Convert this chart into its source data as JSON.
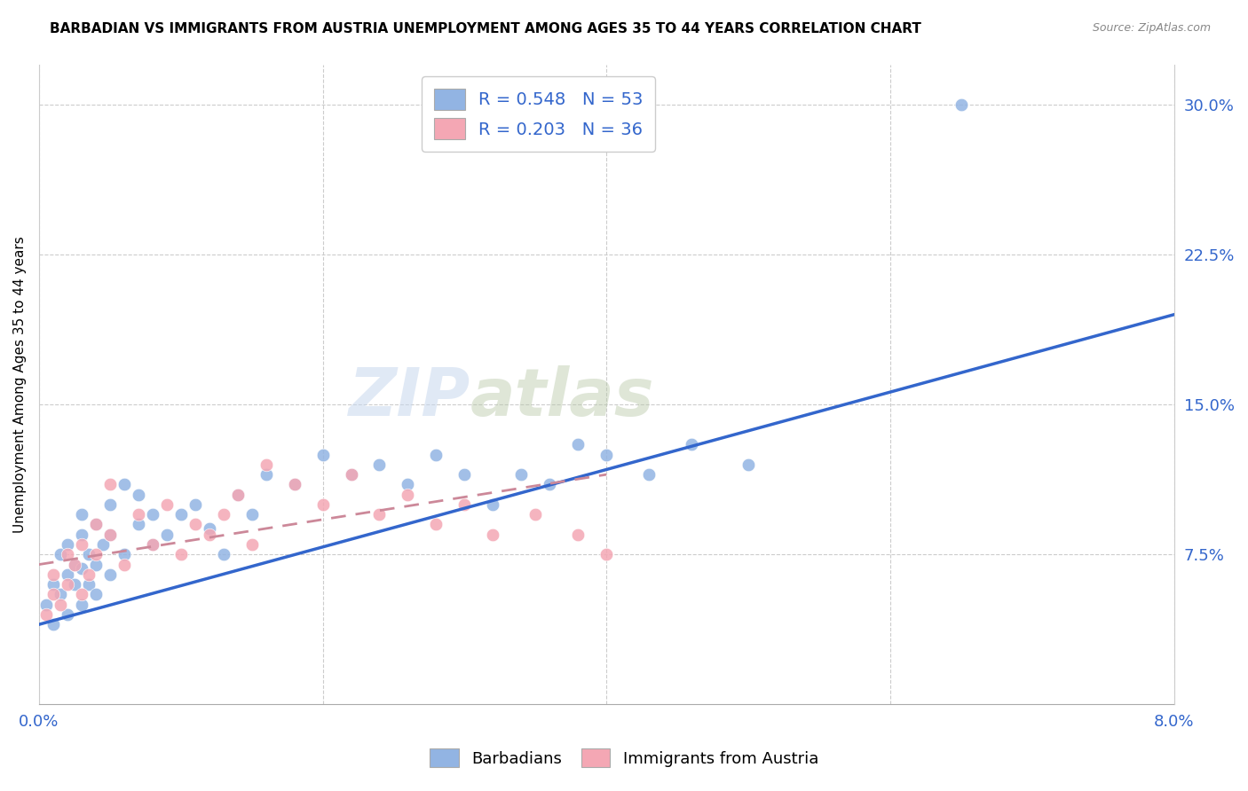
{
  "title": "BARBADIAN VS IMMIGRANTS FROM AUSTRIA UNEMPLOYMENT AMONG AGES 35 TO 44 YEARS CORRELATION CHART",
  "source": "Source: ZipAtlas.com",
  "ylabel": "Unemployment Among Ages 35 to 44 years",
  "xlim": [
    0.0,
    0.08
  ],
  "ylim": [
    0.0,
    0.32
  ],
  "ytick_labels": [
    "7.5%",
    "15.0%",
    "22.5%",
    "30.0%"
  ],
  "ytick_vals": [
    0.075,
    0.15,
    0.225,
    0.3
  ],
  "watermark_left": "ZIP",
  "watermark_right": "atlas",
  "legend1_label": "R = 0.548   N = 53",
  "legend2_label": "R = 0.203   N = 36",
  "blue_color": "#92b4e3",
  "pink_color": "#f4a7b4",
  "blue_line_color": "#3366cc",
  "pink_line_color": "#cc8899",
  "barbadian_x": [
    0.0005,
    0.001,
    0.001,
    0.0015,
    0.0015,
    0.002,
    0.002,
    0.002,
    0.0025,
    0.0025,
    0.003,
    0.003,
    0.003,
    0.003,
    0.0035,
    0.0035,
    0.004,
    0.004,
    0.004,
    0.0045,
    0.005,
    0.005,
    0.005,
    0.006,
    0.006,
    0.007,
    0.007,
    0.008,
    0.008,
    0.009,
    0.01,
    0.011,
    0.012,
    0.013,
    0.014,
    0.015,
    0.016,
    0.018,
    0.02,
    0.022,
    0.024,
    0.026,
    0.028,
    0.03,
    0.032,
    0.034,
    0.036,
    0.038,
    0.04,
    0.043,
    0.046,
    0.05,
    0.065
  ],
  "barbadian_y": [
    0.05,
    0.04,
    0.06,
    0.055,
    0.075,
    0.045,
    0.065,
    0.08,
    0.06,
    0.07,
    0.05,
    0.068,
    0.085,
    0.095,
    0.06,
    0.075,
    0.055,
    0.07,
    0.09,
    0.08,
    0.065,
    0.085,
    0.1,
    0.075,
    0.11,
    0.09,
    0.105,
    0.08,
    0.095,
    0.085,
    0.095,
    0.1,
    0.088,
    0.075,
    0.105,
    0.095,
    0.115,
    0.11,
    0.125,
    0.115,
    0.12,
    0.11,
    0.125,
    0.115,
    0.1,
    0.115,
    0.11,
    0.13,
    0.125,
    0.115,
    0.13,
    0.12,
    0.3
  ],
  "austria_x": [
    0.0005,
    0.001,
    0.001,
    0.0015,
    0.002,
    0.002,
    0.0025,
    0.003,
    0.003,
    0.0035,
    0.004,
    0.004,
    0.005,
    0.005,
    0.006,
    0.007,
    0.008,
    0.009,
    0.01,
    0.011,
    0.012,
    0.013,
    0.014,
    0.015,
    0.016,
    0.018,
    0.02,
    0.022,
    0.024,
    0.026,
    0.028,
    0.03,
    0.032,
    0.035,
    0.038,
    0.04
  ],
  "austria_y": [
    0.045,
    0.055,
    0.065,
    0.05,
    0.06,
    0.075,
    0.07,
    0.055,
    0.08,
    0.065,
    0.075,
    0.09,
    0.085,
    0.11,
    0.07,
    0.095,
    0.08,
    0.1,
    0.075,
    0.09,
    0.085,
    0.095,
    0.105,
    0.08,
    0.12,
    0.11,
    0.1,
    0.115,
    0.095,
    0.105,
    0.09,
    0.1,
    0.085,
    0.095,
    0.085,
    0.075
  ],
  "blue_line_x": [
    0.0,
    0.08
  ],
  "blue_line_y": [
    0.04,
    0.195
  ],
  "pink_line_x": [
    0.0,
    0.04
  ],
  "pink_line_y": [
    0.07,
    0.115
  ]
}
